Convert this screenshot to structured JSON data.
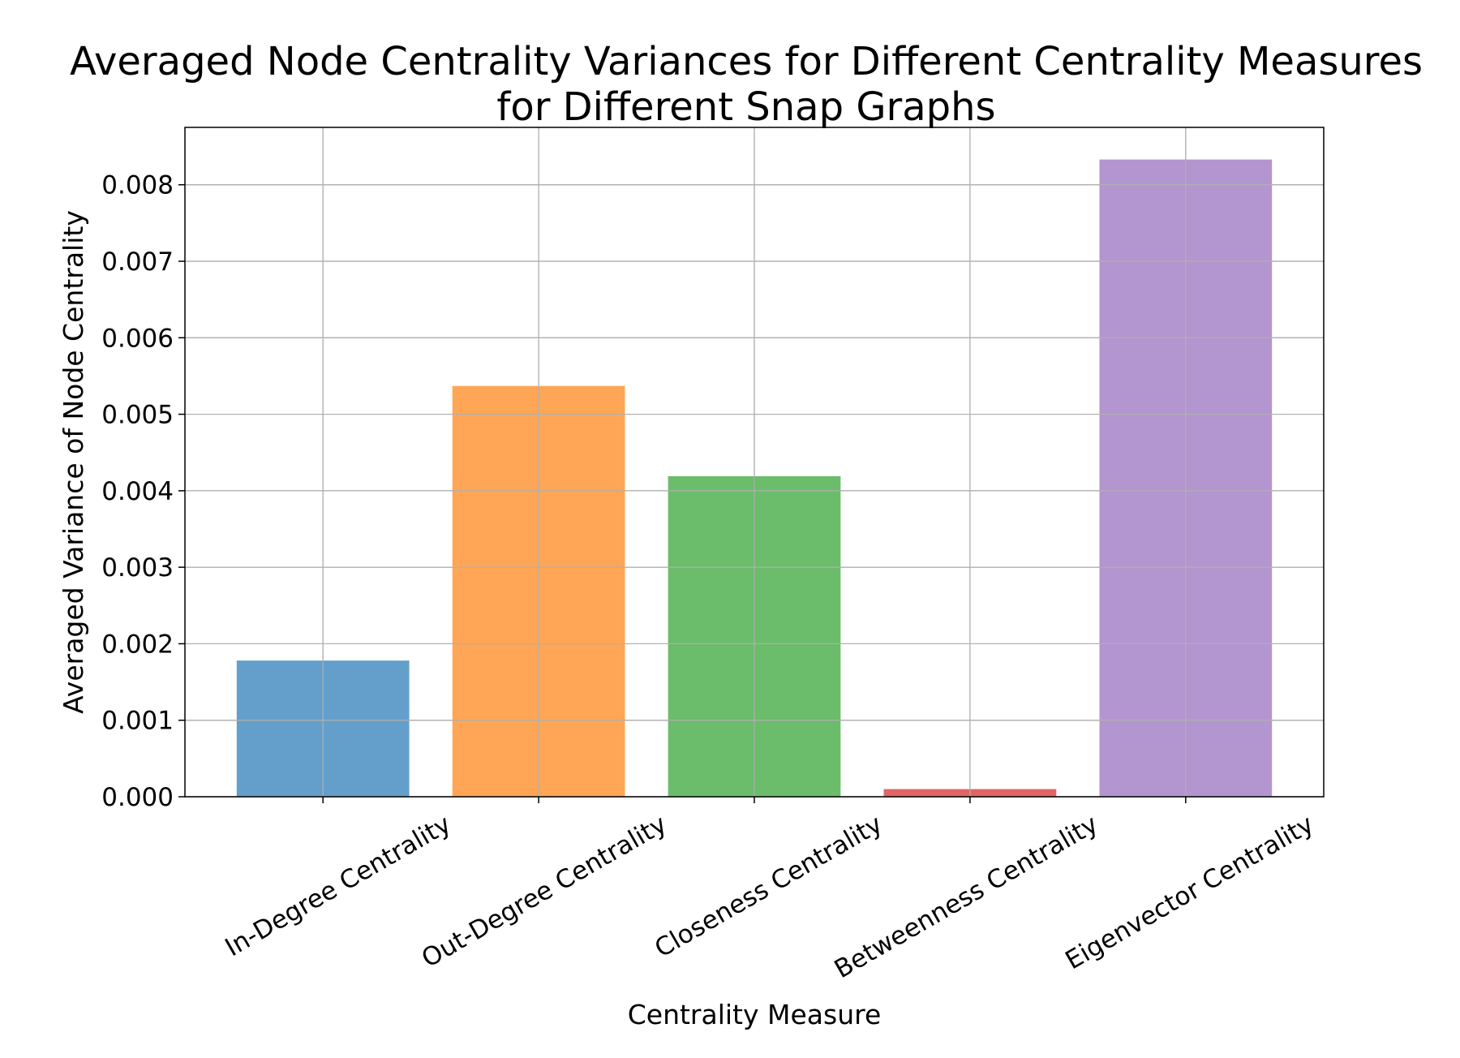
{
  "chart_data": {
    "type": "bar",
    "title": [
      "Averaged Node Centrality Variances for Different Centrality Measures",
      "for Different Snap Graphs"
    ],
    "xlabel": "Centrality Measure",
    "ylabel": "Averaged Variance of Node Centrality",
    "categories": [
      "In-Degree Centrality",
      "Out-Degree Centrality",
      "Closeness Centrality",
      "Betweenness Centrality",
      "Eigenvector Centrality"
    ],
    "values": [
      0.00178,
      0.00537,
      0.00419,
      0.0001,
      0.00833
    ],
    "colors": [
      "#639fca",
      "#fea655",
      "#6bbc6b",
      "#e06666",
      "#b395cf"
    ],
    "ylim": [
      0,
      0.00875
    ],
    "yticks": [
      0.0,
      0.001,
      0.002,
      0.003,
      0.004,
      0.005,
      0.006,
      0.007,
      0.008
    ],
    "ytick_labels": [
      "0.000",
      "0.001",
      "0.002",
      "0.003",
      "0.004",
      "0.005",
      "0.006",
      "0.007",
      "0.008"
    ],
    "grid": true,
    "legend": "none"
  }
}
